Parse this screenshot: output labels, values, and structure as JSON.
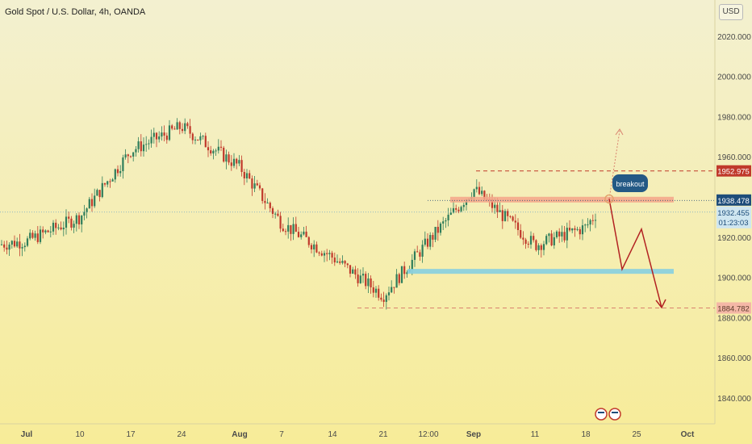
{
  "header": {
    "symbol_title": "Gold Spot / U.S. Dollar, 4h, OANDA",
    "currency_button": "USD"
  },
  "colors": {
    "background_top": "#f3f0d0",
    "background_bottom": "#f7ec98",
    "up_candle": "#2e7d5b",
    "down_candle": "#c0392b",
    "resistance_zone": "#f4a58a",
    "support_zone": "#87cfe0",
    "level_dashed": "#c0392b",
    "projection_arrow": "#b22222",
    "breakout_badge": "#245985",
    "price_tag_current": "#1e4d7a"
  },
  "annotations": {
    "breakout_label": "breakout",
    "upper_level_tag": "1952.975",
    "lower_level_tag": "1884.782",
    "resistance_tag": "1938.478",
    "current_price_tag": "1932.455",
    "countdown_tag": "01:23:03"
  },
  "chart_data": {
    "type": "candlestick",
    "title": "Gold Spot / U.S. Dollar, 4h, OANDA",
    "currency": "USD",
    "y_axis": {
      "ticks": [
        "2020.000",
        "2000.000",
        "1980.000",
        "1960.000",
        "1920.000",
        "1900.000",
        "1880.000",
        "1860.000",
        "1840.000"
      ],
      "range": [
        1830,
        2030
      ]
    },
    "x_axis": {
      "ticks": [
        "Jul",
        "10",
        "17",
        "24",
        "Aug",
        "7",
        "14",
        "21",
        "12:00",
        "Sep",
        "11",
        "18",
        "25",
        "Oct"
      ]
    },
    "price_path": [
      {
        "x": "Jul",
        "y": 1918
      },
      {
        "x": "10",
        "y": 1930
      },
      {
        "x": "17",
        "y": 1963
      },
      {
        "x": "24",
        "y": 1975
      },
      {
        "x": "Aug",
        "y": 1955
      },
      {
        "x": "7",
        "y": 1927
      },
      {
        "x": "14",
        "y": 1910
      },
      {
        "x": "21",
        "y": 1891
      },
      {
        "x": "12:00",
        "y": 1918
      },
      {
        "x": "Sep",
        "y": 1944
      },
      {
        "x": "11",
        "y": 1916
      },
      {
        "x": "18",
        "y": 1925
      },
      {
        "x": "18",
        "y": 1932.455
      }
    ],
    "levels": {
      "upper_dashed": 1952.975,
      "resistance_zone": 1938.478,
      "current_price": 1932.455,
      "support_zone": 1903,
      "lower_dashed": 1884.782
    },
    "projection": [
      1939,
      1904,
      1924,
      1885
    ]
  }
}
